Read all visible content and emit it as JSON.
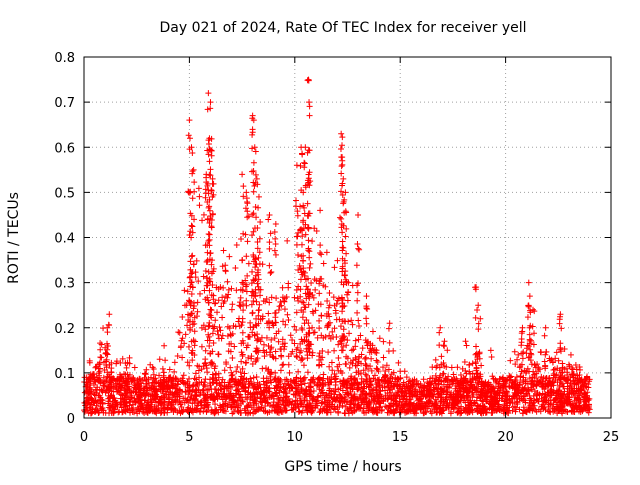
{
  "chart_data": {
    "type": "scatter",
    "title": "Day 021 of 2024, Rate Of TEC Index for receiver yell",
    "xlabel": "GPS time / hours",
    "ylabel": "ROTI / TECUs",
    "xlim": [
      0,
      25
    ],
    "ylim": [
      0,
      0.8
    ],
    "x_ticks": [
      "0",
      "5",
      "10",
      "15",
      "20",
      "25"
    ],
    "y_ticks": [
      "0",
      "0.1",
      "0.2",
      "0.3",
      "0.4",
      "0.5",
      "0.6",
      "0.7",
      "0.8"
    ],
    "grid": true,
    "marker": "plus",
    "color": "#ff0000",
    "envelope": [
      {
        "x": 0.0,
        "y": 0.09
      },
      {
        "x": 0.5,
        "y": 0.14
      },
      {
        "x": 1.0,
        "y": 0.21
      },
      {
        "x": 1.5,
        "y": 0.12
      },
      {
        "x": 2.0,
        "y": 0.13
      },
      {
        "x": 2.5,
        "y": 0.12
      },
      {
        "x": 3.0,
        "y": 0.1
      },
      {
        "x": 3.5,
        "y": 0.14
      },
      {
        "x": 4.0,
        "y": 0.11
      },
      {
        "x": 4.5,
        "y": 0.2
      },
      {
        "x": 5.0,
        "y": 0.4
      },
      {
        "x": 5.5,
        "y": 0.52
      },
      {
        "x": 6.0,
        "y": 0.42
      },
      {
        "x": 6.5,
        "y": 0.37
      },
      {
        "x": 7.0,
        "y": 0.4
      },
      {
        "x": 7.5,
        "y": 0.41
      },
      {
        "x": 8.0,
        "y": 0.46
      },
      {
        "x": 8.5,
        "y": 0.37
      },
      {
        "x": 9.0,
        "y": 0.3
      },
      {
        "x": 9.5,
        "y": 0.38
      },
      {
        "x": 10.0,
        "y": 0.46
      },
      {
        "x": 10.5,
        "y": 0.55
      },
      {
        "x": 11.0,
        "y": 0.43
      },
      {
        "x": 11.5,
        "y": 0.4
      },
      {
        "x": 12.0,
        "y": 0.37
      },
      {
        "x": 12.5,
        "y": 0.38
      },
      {
        "x": 13.0,
        "y": 0.22
      },
      {
        "x": 13.5,
        "y": 0.24
      },
      {
        "x": 14.0,
        "y": 0.18
      },
      {
        "x": 14.5,
        "y": 0.16
      },
      {
        "x": 15.0,
        "y": 0.12
      },
      {
        "x": 15.5,
        "y": 0.08
      },
      {
        "x": 16.0,
        "y": 0.07
      },
      {
        "x": 16.5,
        "y": 0.1
      },
      {
        "x": 17.0,
        "y": 0.17
      },
      {
        "x": 17.5,
        "y": 0.12
      },
      {
        "x": 18.0,
        "y": 0.1
      },
      {
        "x": 18.5,
        "y": 0.16
      },
      {
        "x": 19.0,
        "y": 0.11
      },
      {
        "x": 19.5,
        "y": 0.08
      },
      {
        "x": 20.0,
        "y": 0.1
      },
      {
        "x": 20.5,
        "y": 0.19
      },
      {
        "x": 21.0,
        "y": 0.22
      },
      {
        "x": 21.5,
        "y": 0.17
      },
      {
        "x": 22.0,
        "y": 0.15
      },
      {
        "x": 22.5,
        "y": 0.18
      },
      {
        "x": 23.0,
        "y": 0.13
      },
      {
        "x": 23.5,
        "y": 0.12
      },
      {
        "x": 24.0,
        "y": 0.09
      }
    ],
    "spikes": [
      {
        "x": 1.2,
        "y": 0.23
      },
      {
        "x": 1.1,
        "y": 0.2
      },
      {
        "x": 3.8,
        "y": 0.16
      },
      {
        "x": 5.0,
        "y": 0.66
      },
      {
        "x": 5.1,
        "y": 0.6
      },
      {
        "x": 5.2,
        "y": 0.55
      },
      {
        "x": 5.9,
        "y": 0.72
      },
      {
        "x": 6.0,
        "y": 0.7
      },
      {
        "x": 5.95,
        "y": 0.62
      },
      {
        "x": 5.8,
        "y": 0.54
      },
      {
        "x": 6.1,
        "y": 0.53
      },
      {
        "x": 7.5,
        "y": 0.54
      },
      {
        "x": 7.7,
        "y": 0.5
      },
      {
        "x": 8.0,
        "y": 0.67
      },
      {
        "x": 8.1,
        "y": 0.6
      },
      {
        "x": 8.2,
        "y": 0.53
      },
      {
        "x": 8.3,
        "y": 0.49
      },
      {
        "x": 8.8,
        "y": 0.45
      },
      {
        "x": 9.1,
        "y": 0.43
      },
      {
        "x": 10.1,
        "y": 0.56
      },
      {
        "x": 10.3,
        "y": 0.6
      },
      {
        "x": 10.5,
        "y": 0.6
      },
      {
        "x": 10.65,
        "y": 0.75
      },
      {
        "x": 10.7,
        "y": 0.67
      },
      {
        "x": 10.4,
        "y": 0.5
      },
      {
        "x": 11.2,
        "y": 0.46
      },
      {
        "x": 12.2,
        "y": 0.63
      },
      {
        "x": 12.25,
        "y": 0.57
      },
      {
        "x": 12.3,
        "y": 0.53
      },
      {
        "x": 12.4,
        "y": 0.5
      },
      {
        "x": 13.0,
        "y": 0.45
      },
      {
        "x": 13.4,
        "y": 0.27
      },
      {
        "x": 14.5,
        "y": 0.21
      },
      {
        "x": 16.9,
        "y": 0.2
      },
      {
        "x": 17.1,
        "y": 0.17
      },
      {
        "x": 18.1,
        "y": 0.17
      },
      {
        "x": 18.6,
        "y": 0.29
      },
      {
        "x": 18.7,
        "y": 0.25
      },
      {
        "x": 18.8,
        "y": 0.22
      },
      {
        "x": 19.3,
        "y": 0.15
      },
      {
        "x": 20.8,
        "y": 0.2
      },
      {
        "x": 21.1,
        "y": 0.3
      },
      {
        "x": 21.15,
        "y": 0.27
      },
      {
        "x": 21.3,
        "y": 0.24
      },
      {
        "x": 21.9,
        "y": 0.2
      },
      {
        "x": 22.6,
        "y": 0.23
      },
      {
        "x": 23.1,
        "y": 0.14
      }
    ]
  }
}
